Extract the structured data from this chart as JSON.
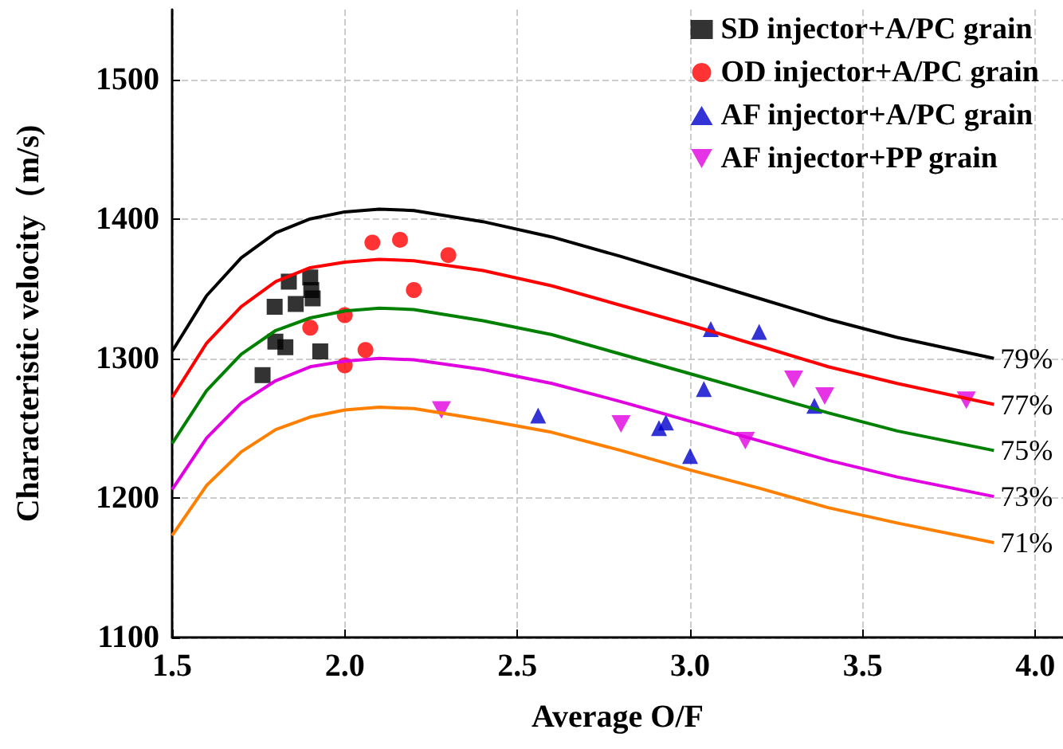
{
  "chart_data": {
    "type": "scatter",
    "xlabel": "Average O/F",
    "ylabel": "Characteristic velocity（m/s)",
    "xlim": [
      1.5,
      4.08
    ],
    "ylim": [
      1100,
      1550
    ],
    "xticks": [
      {
        "value": 1.5,
        "label": "1.5"
      },
      {
        "value": 2,
        "label": "2.0"
      },
      {
        "value": 2.5,
        "label": "2.5"
      },
      {
        "value": 3,
        "label": "3.0"
      },
      {
        "value": 3.5,
        "label": "3.5"
      },
      {
        "value": 4,
        "label": "4.0"
      }
    ],
    "yticks": [
      1100,
      1200,
      1300,
      1400,
      1500
    ],
    "grid": true,
    "legend": "top right",
    "series": [
      {
        "name": "79%",
        "type": "line",
        "marker": "none",
        "color": "#000000",
        "x": [
          1.5,
          1.6,
          1.7,
          1.8,
          1.9,
          2.0,
          2.1,
          2.2,
          2.4,
          2.6,
          2.8,
          3.0,
          3.2,
          3.4,
          3.6,
          3.88
        ],
        "values": [
          1305,
          1345,
          1372,
          1390,
          1400,
          1405,
          1407,
          1406,
          1398,
          1387,
          1373,
          1358,
          1343,
          1328,
          1315,
          1300
        ]
      },
      {
        "name": "77%",
        "type": "line",
        "marker": "none",
        "color": "#ff0000",
        "x": [
          1.5,
          1.6,
          1.7,
          1.8,
          1.9,
          2.0,
          2.1,
          2.2,
          2.4,
          2.6,
          2.8,
          3.0,
          3.2,
          3.4,
          3.6,
          3.88
        ],
        "values": [
          1272,
          1311,
          1337,
          1355,
          1365,
          1369,
          1371,
          1370,
          1363,
          1352,
          1338,
          1324,
          1309,
          1294,
          1282,
          1267
        ]
      },
      {
        "name": "75%",
        "type": "line",
        "marker": "none",
        "color": "#008000",
        "x": [
          1.5,
          1.6,
          1.7,
          1.8,
          1.9,
          2.0,
          2.1,
          2.2,
          2.4,
          2.6,
          2.8,
          3.0,
          3.2,
          3.4,
          3.6,
          3.88
        ],
        "values": [
          1239,
          1277,
          1303,
          1320,
          1329,
          1334,
          1336,
          1335,
          1327,
          1317,
          1303,
          1289,
          1275,
          1261,
          1248,
          1234
        ]
      },
      {
        "name": "73%",
        "type": "line",
        "marker": "none",
        "color": "#e000e0",
        "x": [
          1.5,
          1.6,
          1.7,
          1.8,
          1.9,
          2.0,
          2.1,
          2.2,
          2.4,
          2.6,
          2.8,
          3.0,
          3.2,
          3.4,
          3.6,
          3.88
        ],
        "values": [
          1206,
          1243,
          1268,
          1284,
          1294,
          1298,
          1300,
          1299,
          1292,
          1282,
          1269,
          1255,
          1241,
          1227,
          1215,
          1201
        ]
      },
      {
        "name": "71%",
        "type": "line",
        "marker": "none",
        "color": "#ff8000",
        "x": [
          1.5,
          1.6,
          1.7,
          1.8,
          1.9,
          2.0,
          2.1,
          2.2,
          2.4,
          2.6,
          2.8,
          3.0,
          3.2,
          3.4,
          3.6,
          3.88
        ],
        "values": [
          1173,
          1209,
          1233,
          1249,
          1258,
          1263,
          1265,
          1264,
          1256,
          1247,
          1234,
          1220,
          1207,
          1193,
          1182,
          1168
        ]
      },
      {
        "name": "SD injector+A/PC grain",
        "marker": "square",
        "color": "#000000",
        "x": [
          1.762,
          1.797,
          1.799,
          1.828,
          1.838,
          1.858,
          1.9,
          1.903,
          1.907,
          1.929
        ],
        "values": [
          1288,
          1337,
          1312,
          1308,
          1355,
          1339,
          1358,
          1349,
          1343,
          1305
        ]
      },
      {
        "name": "OD injector+A/PC grain",
        "marker": "circle",
        "color": "#ff0000",
        "x": [
          2.08,
          2.16,
          2.3,
          2.2,
          2.0,
          1.9,
          2.06,
          2.0
        ],
        "values": [
          1383,
          1385,
          1374,
          1349,
          1331,
          1322,
          1306,
          1295
        ]
      },
      {
        "name": "AF injector+A/PC grain",
        "marker": "triangle",
        "color": "#0000cc",
        "x": [
          3.06,
          3.2,
          3.04,
          3.36,
          2.56,
          2.93,
          2.91,
          3.0
        ],
        "values": [
          1321,
          1319,
          1278,
          1266,
          1259,
          1254,
          1250,
          1230
        ]
      },
      {
        "name": "AF injector+PP grain",
        "marker": "triangle-down",
        "color": "#e000e0",
        "x": [
          2.28,
          2.8,
          3.3,
          3.39,
          3.16,
          3.8
        ],
        "values": [
          1263,
          1253,
          1285,
          1273,
          1241,
          1270
        ]
      }
    ]
  }
}
